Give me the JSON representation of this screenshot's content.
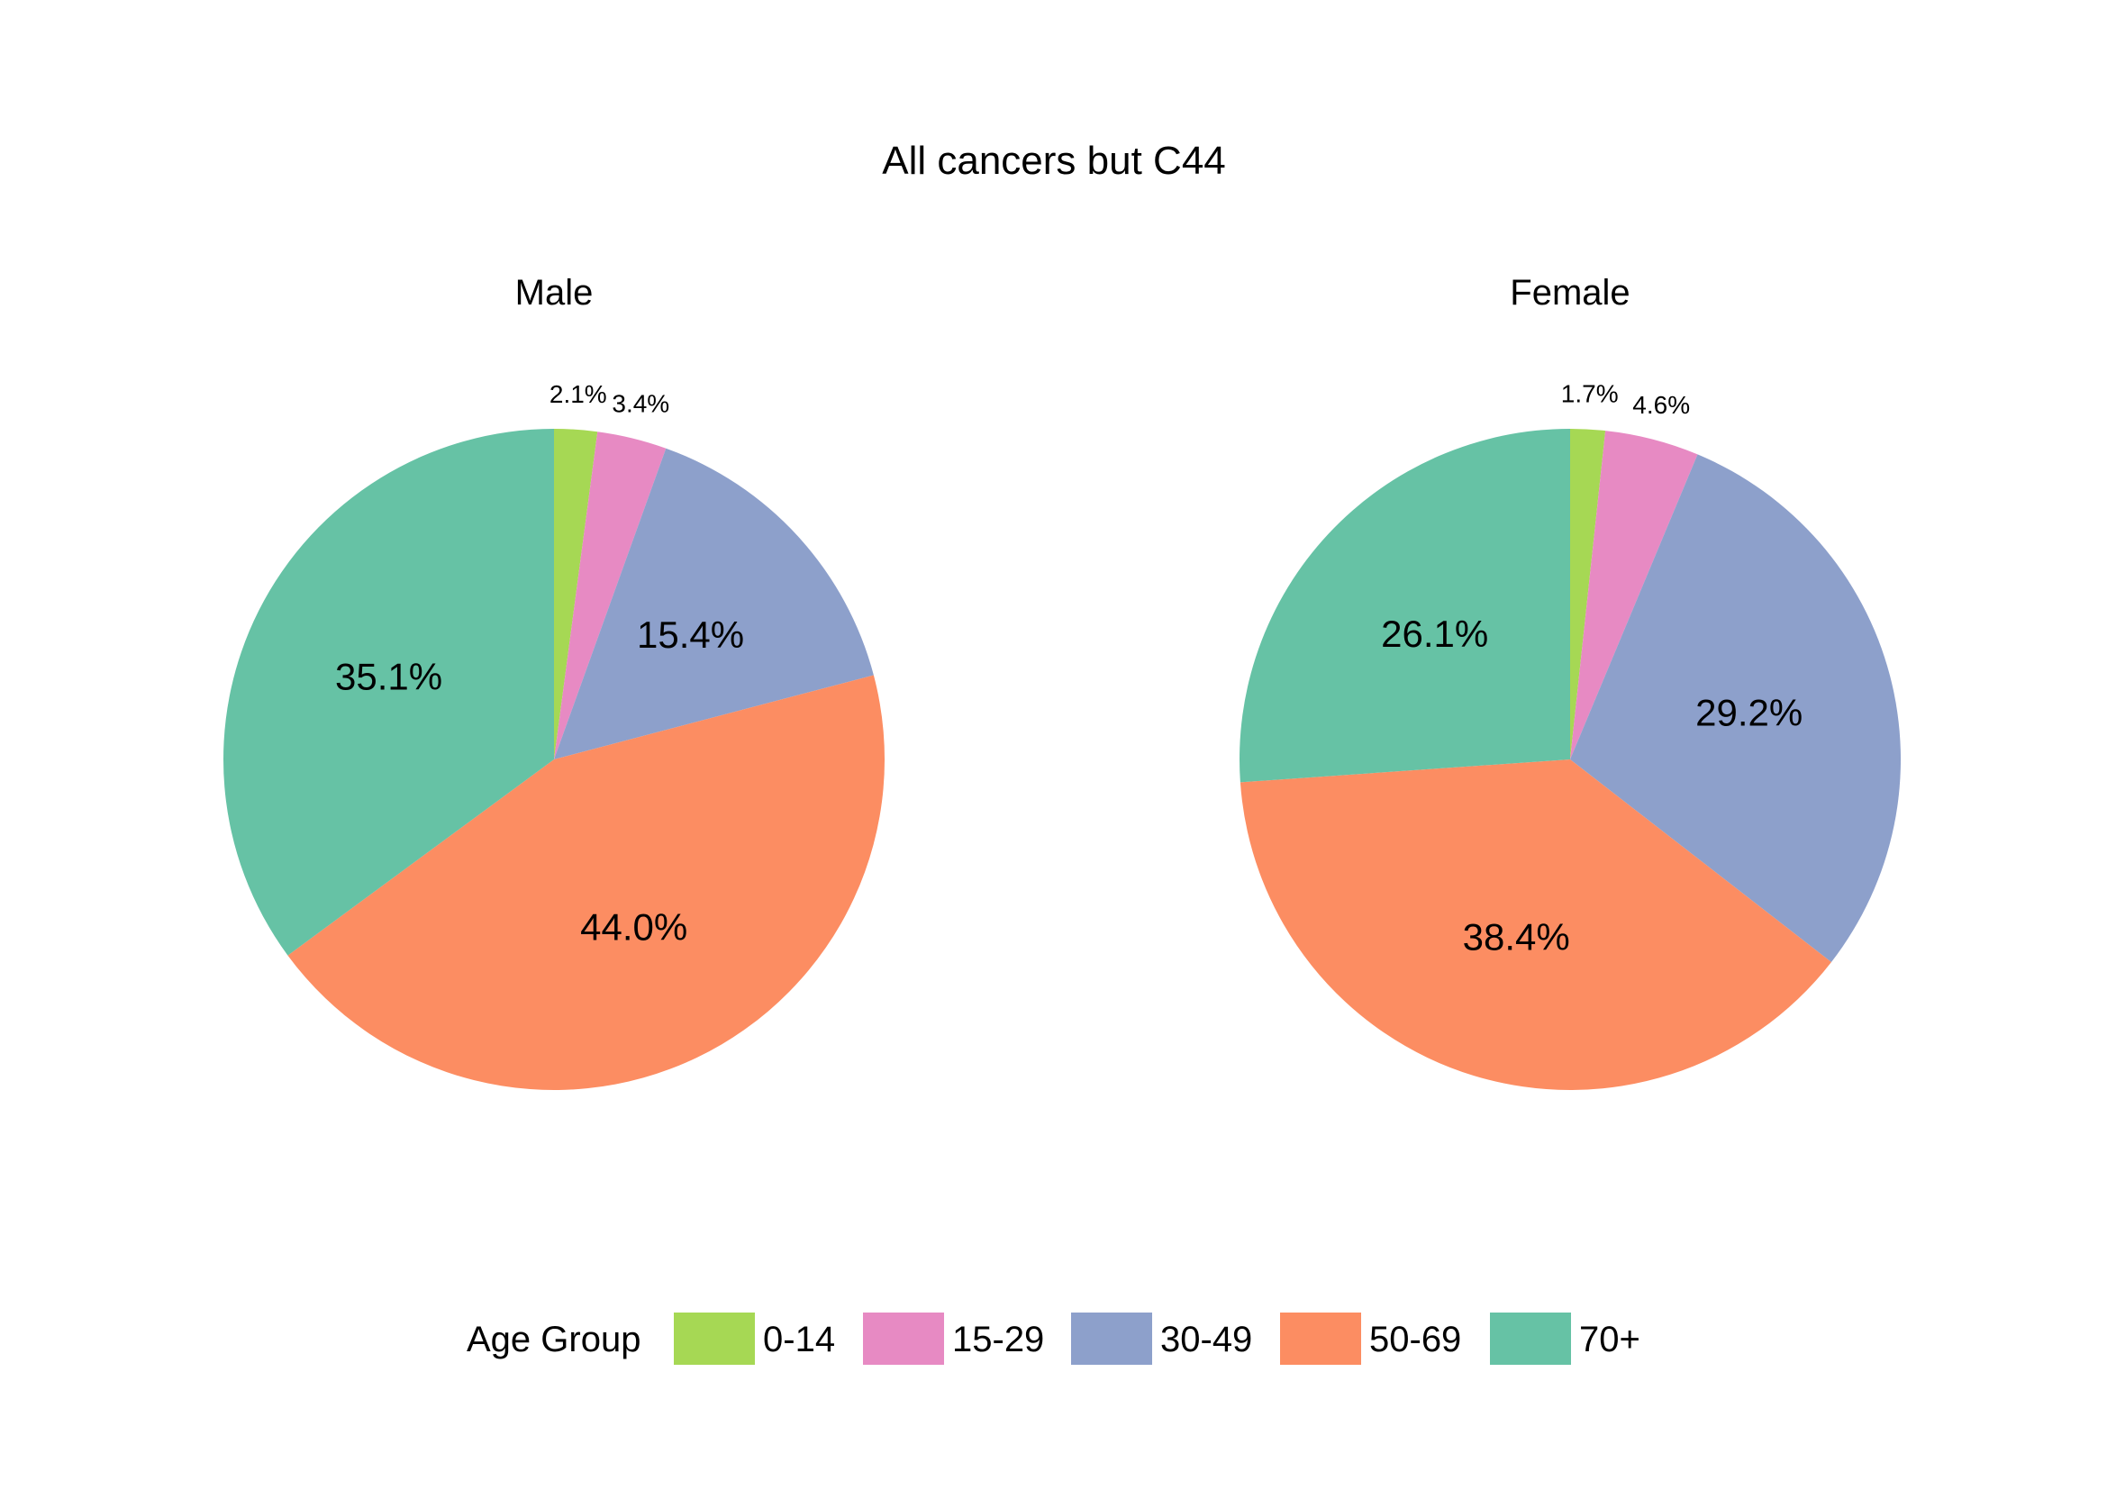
{
  "chart_data": {
    "type": "pie",
    "title": "All cancers but C44",
    "legend": {
      "title": "Age Group",
      "position": "bottom",
      "entries": [
        "0-14",
        "15-29",
        "30-49",
        "50-69",
        "70+"
      ]
    },
    "categories": [
      "0-14",
      "15-29",
      "30-49",
      "50-69",
      "70+"
    ],
    "colors": [
      "#a6d854",
      "#e78ac3",
      "#8da0cb",
      "#fc8d62",
      "#66c2a5"
    ],
    "series": [
      {
        "name": "Male",
        "values": [
          2.1,
          3.4,
          15.4,
          44.0,
          35.1
        ],
        "labels": [
          "2.1%",
          "3.4%",
          "15.4%",
          "44.0%",
          "35.1%"
        ]
      },
      {
        "name": "Female",
        "values": [
          1.7,
          4.6,
          29.2,
          38.4,
          26.1
        ],
        "labels": [
          "1.7%",
          "4.6%",
          "29.2%",
          "38.4%",
          "26.1%"
        ]
      }
    ]
  }
}
